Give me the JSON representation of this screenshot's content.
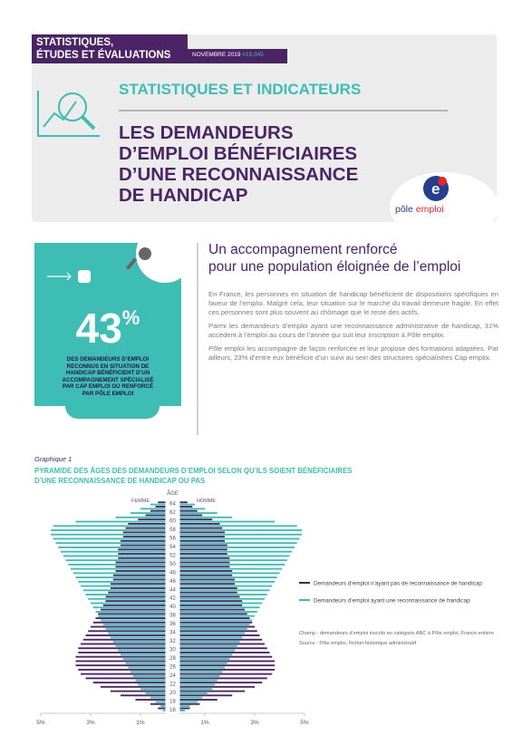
{
  "header": {
    "series_label": [
      "STATISTIQUES,",
      "ÉTUDES ET ÉVALUATIONS"
    ],
    "date": "NOVEMBRE 2019",
    "issue": "#19.045",
    "section": "STATISTIQUES ET INDICATEURS",
    "title_lines": [
      "LES DEMANDEURS",
      "D’EMPLOI BÉNÉFICIAIRES",
      "D’UNE RECONNAISSANCE",
      "DE HANDICAP"
    ],
    "logo": [
      "pôle",
      "emploi"
    ]
  },
  "highlight": {
    "stat_value": "43",
    "stat_unit": "%",
    "text": "DES DEMANDEURS D’EMPLOI RECONNUS EN SITUATION DE HANDICAP BÉNÉFICIENT D’UN ACCOMPAGNEMENT SPÉCIALISÉ PAR CAP EMPLOI OU RENFORCÉ PAR PÔLE EMPLOI"
  },
  "article": {
    "heading_lines": [
      "Un accompagnement renforcé",
      "pour une population éloignée de l’emploi"
    ],
    "paragraphs": [
      "En France, les personnes en situation de handicap bénéficient de dispositions spécifiques en faveur de l’emploi. Malgré cela, leur situation sur le marché du travail demeure fragile. En effet ces personnes sont plus souvent au chômage que le reste des actifs.",
      "Parmi les demandeurs d’emploi ayant une reconnaissance administrative de handicap, 31% accèdent à l’emploi au cours de l’année qui suit leur inscription à Pôle emploi.",
      "Pôle emploi les accompagne de façon renforcée et leur propose des formations adaptées. Par ailleurs, 23% d’entre eux bénéficie d’un suivi au sein des structures spécialisées Cap emploi."
    ]
  },
  "chart_data": {
    "type": "pyramid",
    "kicker": "Graphique 1",
    "title_lines": [
      "PYRAMIDE DES ÂGES DES DEMANDEURS D’EMPLOI SELON QU’ILS SOIENT BÉNÉFICIAIRES",
      "D’UNE RECONNAISSANCE DE HANDICAP OU PAS"
    ],
    "axis_label": "ÂGE",
    "left_label": "FEMME",
    "right_label": "HOMME",
    "categories": [
      16,
      null,
      18,
      null,
      20,
      null,
      22,
      null,
      24,
      null,
      26,
      null,
      28,
      null,
      30,
      null,
      32,
      null,
      34,
      null,
      36,
      null,
      38,
      null,
      40,
      null,
      42,
      null,
      44,
      null,
      46,
      null,
      48,
      null,
      50,
      null,
      52,
      null,
      54,
      null,
      56,
      null,
      58,
      null,
      60,
      null,
      62,
      null,
      64
    ],
    "xlim": [
      0,
      5
    ],
    "left_xticks": [
      {
        "value": 5,
        "label": "5%"
      },
      {
        "value": 3,
        "label": "3%"
      },
      {
        "value": 1,
        "label": "1%"
      }
    ],
    "right_xticks": [
      {
        "value": 1,
        "label": "1%"
      },
      {
        "value": 3,
        "label": "3%"
      },
      {
        "value": 5,
        "label": "5%"
      }
    ],
    "series": [
      {
        "name": "Demandeurs d’emploi n’ayant pas de reconnaissance de handicap",
        "color": "#4b2466",
        "female": [
          0.3,
          0.6,
          1.2,
          1.8,
          2.2,
          2.6,
          2.9,
          3.2,
          3.4,
          3.5,
          3.6,
          3.6,
          3.6,
          3.5,
          3.5,
          3.4,
          3.3,
          3.2,
          3.1,
          3.0,
          2.9,
          2.8,
          2.7,
          2.6,
          2.5,
          2.4,
          2.4,
          2.3,
          2.2,
          2.2,
          2.1,
          2.1,
          2.0,
          2.0,
          2.0,
          1.9,
          1.9,
          1.9,
          1.8,
          1.8,
          1.7,
          1.7,
          1.6,
          1.5,
          1.1,
          0.8,
          0.6,
          0.4,
          0.3
        ],
        "male": [
          0.4,
          0.8,
          1.5,
          2.1,
          2.6,
          3.0,
          3.3,
          3.5,
          3.7,
          3.8,
          3.8,
          3.8,
          3.7,
          3.6,
          3.5,
          3.4,
          3.3,
          3.2,
          3.1,
          3.0,
          2.9,
          2.8,
          2.7,
          2.6,
          2.5,
          2.5,
          2.4,
          2.3,
          2.3,
          2.2,
          2.2,
          2.1,
          2.1,
          2.0,
          2.0,
          2.0,
          1.9,
          1.9,
          1.9,
          1.8,
          1.8,
          1.8,
          1.7,
          1.6,
          1.3,
          0.9,
          0.7,
          0.5,
          0.3
        ]
      },
      {
        "name": "Demandeurs d’emploi ayant une reconnaissance de handicap",
        "color": "#3dbdb3",
        "female": [
          0.1,
          0.2,
          0.4,
          0.6,
          0.8,
          1.0,
          1.1,
          1.2,
          1.3,
          1.4,
          1.5,
          1.6,
          1.7,
          1.8,
          1.9,
          2.0,
          2.1,
          2.2,
          2.3,
          2.4,
          2.5,
          2.6,
          2.7,
          2.8,
          2.9,
          3.0,
          3.1,
          3.2,
          3.3,
          3.4,
          3.5,
          3.6,
          3.7,
          3.8,
          3.9,
          4.0,
          4.1,
          4.2,
          4.3,
          4.4,
          4.5,
          4.6,
          4.6,
          4.5,
          3.6,
          2.0,
          1.4,
          1.0,
          0.6
        ],
        "male": [
          0.2,
          0.4,
          0.7,
          0.9,
          1.1,
          1.3,
          1.4,
          1.5,
          1.6,
          1.7,
          1.8,
          1.9,
          2.0,
          2.1,
          2.2,
          2.3,
          2.4,
          2.5,
          2.6,
          2.7,
          2.8,
          2.9,
          3.0,
          3.1,
          3.2,
          3.3,
          3.4,
          3.5,
          3.6,
          3.7,
          3.8,
          3.9,
          4.0,
          4.1,
          4.2,
          4.3,
          4.4,
          4.5,
          4.6,
          4.7,
          4.8,
          4.9,
          4.9,
          4.7,
          3.8,
          2.1,
          1.5,
          1.0,
          0.6
        ]
      }
    ],
    "notes": [
      "Champ : demandeurs d’emploi inscrits en catégorie ABC à Pôle emploi, France entière",
      "Source : Pôle emploi, Fichier historique administratif"
    ]
  }
}
